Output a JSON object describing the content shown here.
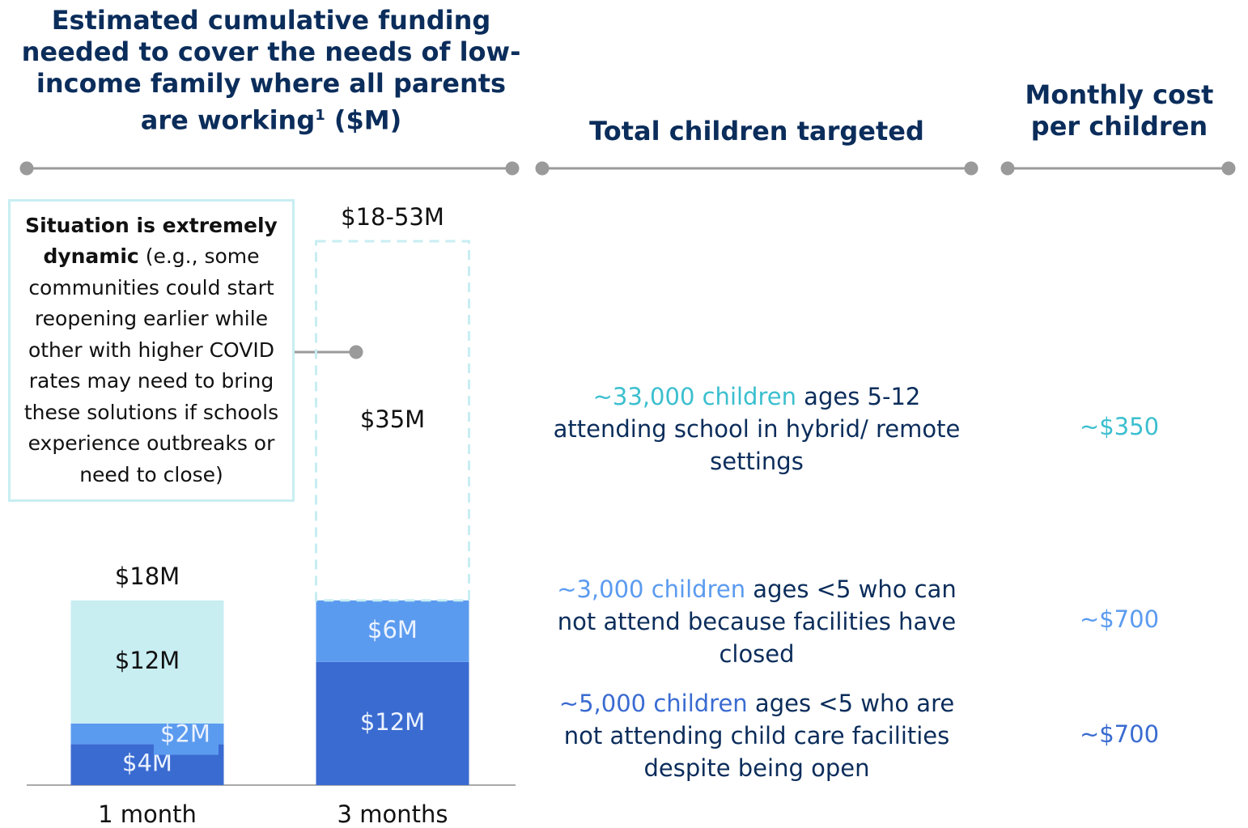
{
  "chart_data": {
    "type": "bar",
    "title_parts": [
      "Estimated cumulative funding needed to cover the needs of low-income family where all parents are working",
      "1",
      " ($M)"
    ],
    "categories": [
      "1 month",
      "3 months"
    ],
    "series": [
      {
        "color": "#3a6bd1",
        "values": [
          4,
          12
        ],
        "value_labels": [
          "$4M",
          "$12M"
        ]
      },
      {
        "color": "#5b9bef",
        "values": [
          2,
          6
        ],
        "value_labels": [
          "$2M",
          "$6M"
        ]
      },
      {
        "color": "#c8eef2",
        "values": [
          12,
          35
        ],
        "value_labels": [
          "$12M",
          "$35M"
        ],
        "styles": [
          "solid",
          "dashed"
        ]
      }
    ],
    "total_labels": [
      "$18M",
      "$18-53M"
    ],
    "annotation": {
      "bold": "Situation is extremely dynamic",
      "text": " (e.g., some communities could start reopening earlier while other with higher COVID rates may need to bring these solutions if schools experience outbreaks or need to close)"
    }
  },
  "table": {
    "headers": [
      "Total children targeted",
      "Monthly cost per children"
    ],
    "rows": [
      {
        "highlight": "~33,000 children",
        "text": " ages 5-12 attending school in hybrid/ remote settings",
        "cost": "~$350",
        "color": "#3bbfcf"
      },
      {
        "highlight": "~3,000 children",
        "text": " ages <5 who can not attend because facilities have closed",
        "cost": "~$700",
        "color": "#5b9bef"
      },
      {
        "highlight": "~5,000 children",
        "text": " ages <5 who are not attending child care facilities despite being open",
        "cost": "~$700",
        "color": "#3a6bd1"
      }
    ]
  }
}
